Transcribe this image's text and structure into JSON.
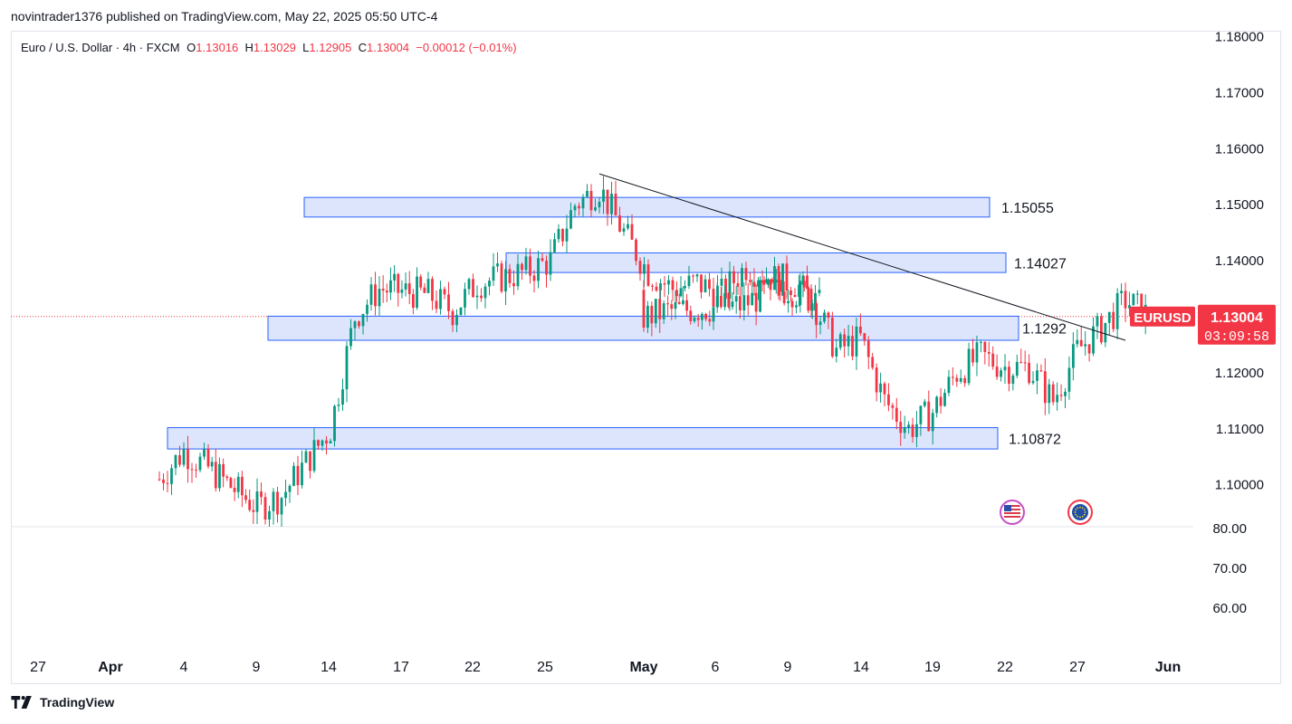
{
  "header": {
    "publish_line": "novintrader1376 published on TradingView.com, May 22, 2025 05:50 UTC-4"
  },
  "legend": {
    "symbol": "Euro / U.S. Dollar · 4h · FXCM",
    "o_label": "O",
    "o_value": "1.13016",
    "h_label": "H",
    "h_value": "1.13029",
    "l_label": "L",
    "l_value": "1.12905",
    "c_label": "C",
    "c_value": "1.13004",
    "change": "−0.00012 (−0.01%)"
  },
  "colors": {
    "up": "#089981",
    "down": "#f23645",
    "zone_fill": "#d6e0fb",
    "zone_stroke": "#2962ff",
    "price_tag": "#f23645"
  },
  "footer": {
    "brand": "TradingView"
  },
  "chart_data": {
    "type": "candlestick",
    "symbol": "EURUSD",
    "timeframe": "4h",
    "last_price": "1.13004",
    "countdown": "03:09:58",
    "y_ticks": [
      "1.18000",
      "1.17000",
      "1.16000",
      "1.15000",
      "1.14000",
      "1.13000",
      "1.12000",
      "1.11000",
      "1.10000"
    ],
    "ylim": [
      1.0935,
      1.1836
    ],
    "lower_pane_ticks": [
      "80.00",
      "70.00",
      "60.00"
    ],
    "x_ticks": [
      "27",
      "Apr",
      "4",
      "9",
      "14",
      "17",
      "22",
      "25",
      "May",
      "6",
      "9",
      "14",
      "19",
      "22",
      "27",
      "Jun"
    ],
    "zones": [
      {
        "label": "1.15055",
        "low": 1.1478,
        "high": 1.1513
      },
      {
        "label": "1.14027",
        "low": 1.1379,
        "high": 1.1414
      },
      {
        "label": "1.1292",
        "low": 1.1258,
        "high": 1.1301
      },
      {
        "label": "1.10872",
        "low": 1.1064,
        "high": 1.1102
      }
    ],
    "trendline": {
      "from": {
        "date": "Apr 21",
        "price": 1.1555
      },
      "to": {
        "date": "May 21",
        "price": 1.1258
      }
    },
    "close_path": [
      {
        "date": "Apr 3",
        "close": 1.101
      },
      {
        "date": "Apr 4",
        "close": 1.106
      },
      {
        "date": "Apr 5",
        "close": 1.103
      },
      {
        "date": "Apr 7",
        "close": 1.096
      },
      {
        "date": "Apr 8",
        "close": 1.098
      },
      {
        "date": "Apr 9",
        "close": 1.104
      },
      {
        "date": "Apr 10",
        "close": 1.11
      },
      {
        "date": "Apr 11",
        "close": 1.13
      },
      {
        "date": "Apr 12",
        "close": 1.135
      },
      {
        "date": "Apr 14",
        "close": 1.134
      },
      {
        "date": "Apr 15",
        "close": 1.131
      },
      {
        "date": "Apr 16",
        "close": 1.136
      },
      {
        "date": "Apr 17",
        "close": 1.137
      },
      {
        "date": "Apr 18",
        "close": 1.138
      },
      {
        "date": "Apr 19",
        "close": 1.14
      },
      {
        "date": "Apr 20",
        "close": 1.15
      },
      {
        "date": "Apr 21",
        "close": 1.153
      },
      {
        "date": "Apr 22",
        "close": 1.145
      },
      {
        "date": "Apr 23",
        "close": 1.138
      },
      {
        "date": "Apr 24",
        "close": 1.135
      },
      {
        "date": "Apr 25",
        "close": 1.136
      },
      {
        "date": "Apr 26",
        "close": 1.134
      },
      {
        "date": "Apr 27",
        "close": 1.139
      },
      {
        "date": "Apr 28",
        "close": 1.137
      },
      {
        "date": "Apr 29",
        "close": 1.136
      },
      {
        "date": "Apr 30",
        "close": 1.132
      },
      {
        "date": "May 1",
        "close": 1.13
      },
      {
        "date": "May 2",
        "close": 1.131
      },
      {
        "date": "May 5",
        "close": 1.132
      },
      {
        "date": "May 6",
        "close": 1.134
      },
      {
        "date": "May 7",
        "close": 1.135
      },
      {
        "date": "May 8",
        "close": 1.133
      },
      {
        "date": "May 9",
        "close": 1.124
      },
      {
        "date": "May 10",
        "close": 1.126
      },
      {
        "date": "May 11",
        "close": 1.115
      },
      {
        "date": "May 12",
        "close": 1.11
      },
      {
        "date": "May 13",
        "close": 1.113
      },
      {
        "date": "May 14",
        "close": 1.12
      },
      {
        "date": "May 15",
        "close": 1.123
      },
      {
        "date": "May 16",
        "close": 1.121
      },
      {
        "date": "May 17",
        "close": 1.121
      },
      {
        "date": "May 18",
        "close": 1.115
      },
      {
        "date": "May 19",
        "close": 1.124
      },
      {
        "date": "May 20",
        "close": 1.128
      },
      {
        "date": "May 21",
        "close": 1.133
      },
      {
        "date": "May 22",
        "close": 1.13
      }
    ]
  }
}
